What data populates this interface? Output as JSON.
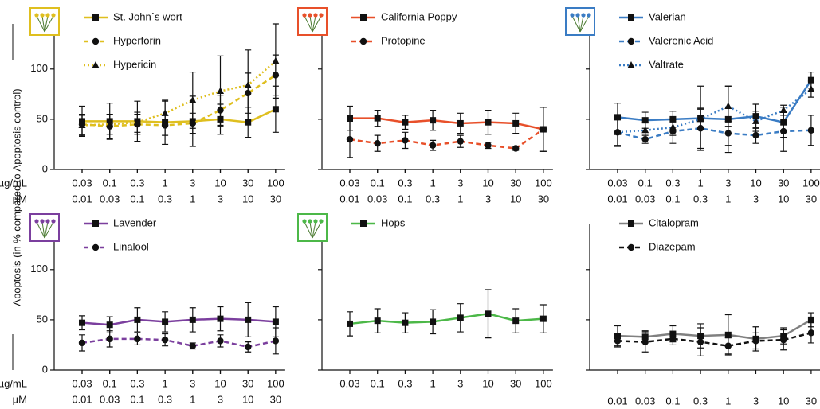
{
  "y_label": "Apoptosis (in % compared to Apoptosis control)",
  "chart_data": [
    {
      "type": "line",
      "icon": true,
      "show_ytick_labels": true,
      "x_row_labels": [
        "µg/mL",
        "µM"
      ],
      "categories": [
        "0.03",
        "0.1",
        "0.3",
        "1",
        "3",
        "10",
        "30",
        "100"
      ],
      "categories_um": [
        "0.01",
        "0.03",
        "0.1",
        "0.3",
        "1",
        "3",
        "10",
        "30"
      ],
      "ylim": [
        0,
        145
      ],
      "yticks": [
        0,
        50,
        100
      ],
      "series": [
        {
          "name": "St. John´s wort",
          "color": "#dfbf1f",
          "dash": "solid",
          "marker": "square",
          "values": [
            48,
            48,
            48,
            47,
            48,
            50,
            47,
            60
          ],
          "errors": [
            15,
            18,
            20,
            22,
            25,
            15,
            15,
            23
          ]
        },
        {
          "name": "Hyperforin",
          "color": "#dfbf1f",
          "dash": "dashed",
          "marker": "circle",
          "values": [
            45,
            43,
            45,
            44,
            46,
            59,
            76,
            94
          ],
          "errors": [
            10,
            12,
            10,
            10,
            10,
            15,
            20,
            20
          ]
        },
        {
          "name": "Hypericin",
          "color": "#dfbf1f",
          "dash": "dotted",
          "marker": "triangle",
          "values": [
            44,
            45,
            47,
            56,
            69,
            78,
            84,
            108
          ],
          "errors": [
            10,
            10,
            10,
            12,
            28,
            35,
            35,
            37
          ]
        }
      ]
    },
    {
      "type": "line",
      "icon": true,
      "show_ytick_labels": false,
      "categories": [
        "0.03",
        "0.1",
        "0.3",
        "1",
        "3",
        "10",
        "30",
        "100"
      ],
      "categories_um": [
        "0.01",
        "0.03",
        "0.1",
        "0.3",
        "1",
        "3",
        "10",
        "30"
      ],
      "ylim": [
        0,
        145
      ],
      "yticks": [
        0,
        50,
        100
      ],
      "series": [
        {
          "name": "California Poppy",
          "color": "#e8502a",
          "dash": "solid",
          "marker": "square",
          "values": [
            51,
            51,
            47,
            49,
            46,
            47,
            46,
            40
          ],
          "errors": [
            12,
            8,
            7,
            10,
            10,
            12,
            10,
            22
          ]
        },
        {
          "name": "Protopine",
          "color": "#e8502a",
          "dash": "dashed",
          "marker": "circle",
          "values": [
            30,
            26,
            29,
            24,
            28,
            24,
            21,
            40
          ],
          "errors": [
            18,
            8,
            8,
            5,
            6,
            3,
            2,
            22
          ]
        }
      ]
    },
    {
      "type": "line",
      "icon": true,
      "show_ytick_labels": false,
      "categories": [
        "0.03",
        "0.1",
        "0.3",
        "1",
        "3",
        "10",
        "30",
        "100"
      ],
      "categories_um": [
        "0.01",
        "0.03",
        "0.1",
        "0.3",
        "1",
        "3",
        "10",
        "30"
      ],
      "ylim": [
        0,
        145
      ],
      "yticks": [
        0,
        50,
        100
      ],
      "series": [
        {
          "name": "Valerian",
          "color": "#3a7cc4",
          "dash": "solid",
          "marker": "square",
          "values": [
            52,
            49,
            50,
            51,
            50,
            53,
            47,
            89
          ],
          "errors": [
            14,
            8,
            8,
            32,
            33,
            12,
            15,
            8
          ]
        },
        {
          "name": "Valerenic Acid",
          "color": "#3a7cc4",
          "dash": "dashed",
          "marker": "circle",
          "values": [
            37,
            30,
            38,
            41,
            36,
            34,
            38,
            39
          ],
          "errors": [
            13,
            4,
            12,
            20,
            12,
            8,
            20,
            15
          ]
        },
        {
          "name": "Valtrate",
          "color": "#3a7cc4",
          "dash": "dotted",
          "marker": "triangle",
          "values": [
            37,
            39,
            42,
            50,
            63,
            48,
            59,
            80
          ],
          "errors": [
            14,
            8,
            8,
            10,
            20,
            10,
            5,
            8
          ]
        }
      ]
    },
    {
      "type": "line",
      "icon": true,
      "show_ytick_labels": true,
      "x_row_labels": [
        "µg/mL",
        "µM"
      ],
      "categories": [
        "0.03",
        "0.1",
        "0.3",
        "1",
        "3",
        "10",
        "30",
        "100"
      ],
      "categories_um": [
        "0.01",
        "0.03",
        "0.1",
        "0.3",
        "1",
        "3",
        "10",
        "30"
      ],
      "ylim": [
        0,
        145
      ],
      "yticks": [
        0,
        50,
        100
      ],
      "series": [
        {
          "name": "Lavender",
          "color": "#7b3f9e",
          "dash": "solid",
          "marker": "square",
          "values": [
            47,
            45,
            50,
            48,
            50,
            51,
            50,
            48
          ],
          "errors": [
            7,
            8,
            12,
            10,
            12,
            12,
            17,
            15
          ]
        },
        {
          "name": "Linalool",
          "color": "#7b3f9e",
          "dash": "dashed",
          "marker": "circle",
          "values": [
            27,
            31,
            31,
            30,
            24,
            29,
            23,
            29
          ],
          "errors": [
            8,
            8,
            6,
            6,
            3,
            6,
            5,
            13
          ]
        }
      ]
    },
    {
      "type": "line",
      "icon": true,
      "show_ytick_labels": false,
      "categories": [
        "0.03",
        "0.1",
        "0.3",
        "1",
        "3",
        "10",
        "30",
        "100"
      ],
      "ylim": [
        0,
        145
      ],
      "yticks": [
        0,
        50,
        100
      ],
      "series": [
        {
          "name": "Hops",
          "color": "#4cb848",
          "dash": "solid",
          "marker": "square",
          "values": [
            46,
            49,
            47,
            48,
            52,
            56,
            49,
            51
          ],
          "errors": [
            12,
            12,
            10,
            12,
            14,
            24,
            12,
            14
          ]
        }
      ]
    },
    {
      "type": "line",
      "icon": false,
      "show_ytick_labels": false,
      "categories_um": [
        "0.01",
        "0.03",
        "0.1",
        "0.3",
        "1",
        "3",
        "10",
        "30"
      ],
      "ylim": [
        0,
        145
      ],
      "yticks": [
        0,
        50,
        100
      ],
      "series": [
        {
          "name": "Citalopram",
          "color": "#808080",
          "dash": "solid",
          "marker": "square",
          "values": [
            34,
            33,
            36,
            34,
            35,
            31,
            34,
            50
          ],
          "errors": [
            10,
            6,
            8,
            12,
            20,
            12,
            8,
            7
          ]
        },
        {
          "name": "Diazepam",
          "color": "#111111",
          "dash": "dashed",
          "marker": "circle",
          "values": [
            29,
            28,
            31,
            28,
            24,
            29,
            30,
            37
          ],
          "errors": [
            6,
            10,
            6,
            14,
            8,
            8,
            10,
            10
          ]
        }
      ]
    }
  ]
}
